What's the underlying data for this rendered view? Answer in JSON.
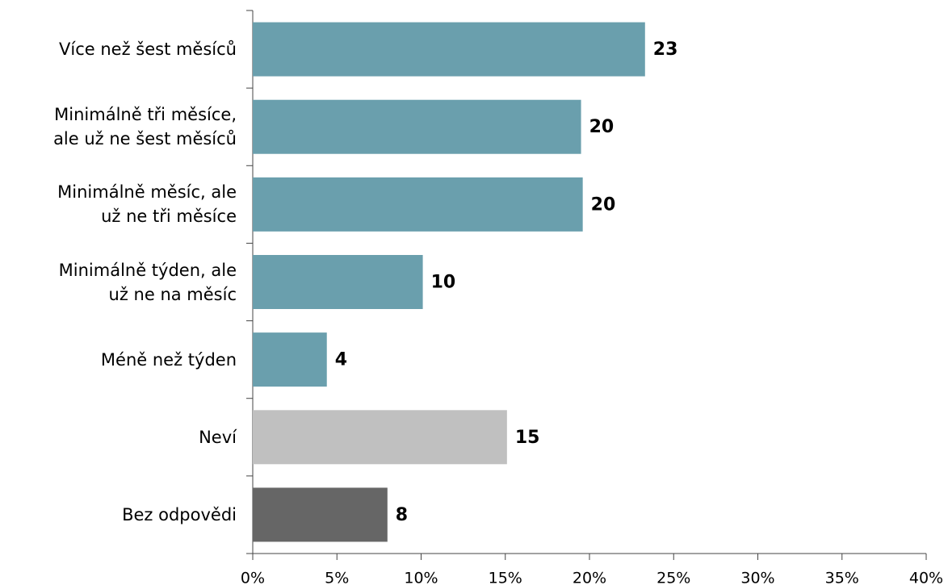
{
  "chart_data": {
    "type": "hbar",
    "categories": [
      "Více než šest měsíců",
      "Minimálně tři měsíce,\nale už ne šest měsíců",
      "Minimálně měsíc, ale\nuž ne tři měsíce",
      "Minimálně týden, ale\nuž ne na měsíc",
      "Méně než týden",
      "Neví",
      "Bez odpovědi"
    ],
    "values": [
      23.3,
      19.5,
      19.6,
      10.1,
      4.4,
      15.1,
      8.0
    ],
    "value_labels": [
      "23",
      "20",
      "20",
      "10",
      "4",
      "15",
      "8"
    ],
    "colors": [
      "#6a9fad",
      "#6a9fad",
      "#6a9fad",
      "#6a9fad",
      "#6a9fad",
      "#c0c0c0",
      "#666666"
    ],
    "xlim": [
      0,
      40
    ],
    "xticks": [
      {
        "value": 0,
        "label": "0%"
      },
      {
        "value": 5,
        "label": "5%"
      },
      {
        "value": 10,
        "label": "10%"
      },
      {
        "value": 15,
        "label": "15%"
      },
      {
        "value": 20,
        "label": "20%"
      },
      {
        "value": 25,
        "label": "25%"
      },
      {
        "value": 30,
        "label": "30%"
      },
      {
        "value": 35,
        "label": "35%"
      },
      {
        "value": 40,
        "label": "40%"
      }
    ],
    "grid": false
  }
}
